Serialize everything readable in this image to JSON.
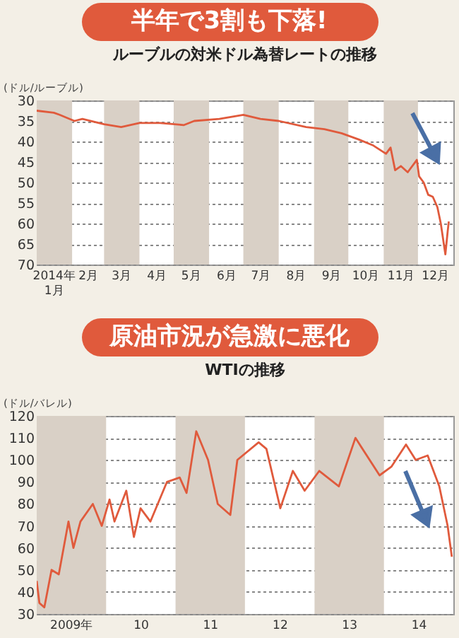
{
  "chart_data": [
    {
      "type": "line",
      "title": "半年で3割も下落!",
      "subtitle": "ルーブルの対米ドル為替レートの推移",
      "ylabel": "(ドル/ルーブル)",
      "series": [
        {
          "color": "#e05a3c",
          "x": [
            "2014-01-01",
            "2014-01-16",
            "2014-01-21",
            "2014-02-03",
            "2014-02-10",
            "2014-03-01",
            "2014-03-16",
            "2014-04-01",
            "2014-04-19",
            "2014-05-10",
            "2014-05-19",
            "2014-06-10",
            "2014-07-01",
            "2014-07-16",
            "2014-08-01",
            "2014-08-25",
            "2014-09-10",
            "2014-09-25",
            "2014-10-10",
            "2014-10-23",
            "2014-11-03",
            "2014-11-07",
            "2014-11-11",
            "2014-11-16",
            "2014-11-22",
            "2014-11-30",
            "2014-12-02",
            "2014-12-06",
            "2014-12-10",
            "2014-12-14",
            "2014-12-18",
            "2014-12-21",
            "2014-12-25",
            "2014-12-27",
            "2014-12-28"
          ],
          "values": [
            32.5,
            33,
            33.5,
            35,
            34.5,
            35.8,
            36.5,
            35.5,
            35.5,
            36,
            35,
            34.5,
            33.5,
            34.5,
            35,
            36.5,
            37,
            38,
            39.5,
            41,
            43,
            41.5,
            47,
            46,
            47.5,
            44.5,
            48.5,
            50,
            53,
            53.5,
            56,
            60,
            67.5,
            62,
            59.5
          ]
        }
      ],
      "xlim": [
        "2014-01-01",
        "2015-01-01"
      ],
      "xticks": [
        {
          "value": "2014-01-16",
          "label": "2014年\n1月"
        },
        {
          "value": "2014-02-15",
          "label": "2月"
        },
        {
          "value": "2014-03-16",
          "label": "3月"
        },
        {
          "value": "2014-04-16",
          "label": "4月"
        },
        {
          "value": "2014-05-16",
          "label": "5月"
        },
        {
          "value": "2014-06-16",
          "label": "6月"
        },
        {
          "value": "2014-07-16",
          "label": "7月"
        },
        {
          "value": "2014-08-16",
          "label": "8月"
        },
        {
          "value": "2014-09-16",
          "label": "9月"
        },
        {
          "value": "2014-10-16",
          "label": "10月"
        },
        {
          "value": "2014-11-16",
          "label": "11月"
        },
        {
          "value": "2014-12-16",
          "label": "12月"
        }
      ],
      "ylim": [
        70,
        30
      ],
      "yticks": [
        30,
        35,
        40,
        45,
        50,
        55,
        60,
        65,
        70
      ],
      "grid": "y",
      "bands": [
        {
          "axis": "x",
          "from": "2014-01-01",
          "to": "2014-02-01",
          "color": "#d9d0c6"
        },
        {
          "axis": "x",
          "from": "2014-03-01",
          "to": "2014-04-01",
          "color": "#d9d0c6"
        },
        {
          "axis": "x",
          "from": "2014-05-01",
          "to": "2014-06-01",
          "color": "#d9d0c6"
        },
        {
          "axis": "x",
          "from": "2014-07-01",
          "to": "2014-08-01",
          "color": "#d9d0c6"
        },
        {
          "axis": "x",
          "from": "2014-09-01",
          "to": "2014-10-01",
          "color": "#d9d0c6"
        },
        {
          "axis": "x",
          "from": "2014-11-01",
          "to": "2014-12-01",
          "color": "#d9d0c6"
        }
      ]
    },
    {
      "type": "line",
      "title": "原油市況が急激に悪化",
      "subtitle": "WTIの推移",
      "ylabel": "(ドル/バレル)",
      "series": [
        {
          "color": "#e05a3c",
          "x": [
            "2009-01-01",
            "2009-01-15",
            "2009-02-10",
            "2009-03-20",
            "2009-04-27",
            "2009-06-17",
            "2009-07-13",
            "2009-08-19",
            "2009-10-23",
            "2009-12-09",
            "2010-01-19",
            "2010-02-14",
            "2010-04-17",
            "2010-05-27",
            "2010-07-01",
            "2010-08-22",
            "2010-11-17",
            "2011-01-23",
            "2011-02-28",
            "2011-04-20",
            "2011-06-21",
            "2011-08-11",
            "2011-10-16",
            "2011-11-22",
            "2012-03-13",
            "2012-04-23",
            "2012-07-05",
            "2012-09-09",
            "2012-11-10",
            "2013-01-26",
            "2013-05-09",
            "2013-08-04",
            "2013-12-09",
            "2014-02-10",
            "2014-04-27",
            "2014-06-17",
            "2014-08-19",
            "2014-10-19",
            "2014-12-02",
            "2014-12-24"
          ],
          "values": [
            45,
            35,
            33,
            50,
            48,
            72,
            60,
            72,
            80,
            70,
            82,
            72,
            86,
            65,
            78,
            72,
            90,
            92,
            85,
            113,
            100,
            80,
            75,
            100,
            108,
            105,
            78,
            95,
            86,
            95,
            88,
            110,
            93,
            97,
            107,
            100,
            102,
            88,
            70,
            56
          ]
        }
      ],
      "xlim": [
        "2009-01-01",
        "2015-01-01"
      ],
      "xticks": [
        {
          "value": "2009-07-01",
          "label": "2009年"
        },
        {
          "value": "2010-07-01",
          "label": "10"
        },
        {
          "value": "2011-07-01",
          "label": "11"
        },
        {
          "value": "2012-07-01",
          "label": "12"
        },
        {
          "value": "2013-07-01",
          "label": "13"
        },
        {
          "value": "2014-07-01",
          "label": "14"
        }
      ],
      "ylim": [
        30,
        120
      ],
      "yticks": [
        30,
        40,
        50,
        60,
        70,
        80,
        90,
        100,
        110,
        120
      ],
      "grid": "y",
      "bands": [
        {
          "axis": "x",
          "from": "2009-01-01",
          "to": "2010-01-01",
          "color": "#d9d0c6"
        },
        {
          "axis": "x",
          "from": "2011-01-01",
          "to": "2012-01-01",
          "color": "#d9d0c6"
        },
        {
          "axis": "x",
          "from": "2013-01-01",
          "to": "2014-01-01",
          "color": "#d9d0c6"
        }
      ]
    }
  ]
}
